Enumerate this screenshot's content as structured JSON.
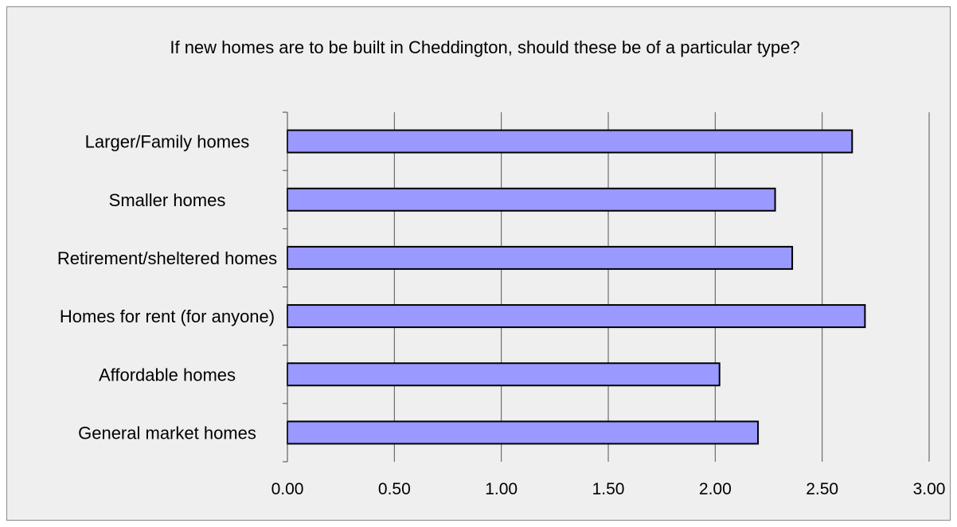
{
  "chart_data": {
    "type": "bar",
    "orientation": "horizontal",
    "title": "If new homes are to be built in Cheddington, should these be of a particular type?",
    "categories": [
      "Larger/Family homes",
      "Smaller homes",
      "Retirement/sheltered homes",
      "Homes for rent (for anyone)",
      "Affordable homes",
      "General market homes"
    ],
    "values": [
      2.64,
      2.28,
      2.36,
      2.7,
      2.02,
      2.2
    ],
    "xlim": [
      0,
      3
    ],
    "xticks": [
      "0.00",
      "0.50",
      "1.00",
      "1.50",
      "2.00",
      "2.50",
      "3.00"
    ],
    "xlabel": "",
    "ylabel": "",
    "grid": "vertical",
    "legend": "none",
    "bar_color": "#9999ff",
    "bar_border_color": "#000000",
    "background_color": "#efefef"
  }
}
